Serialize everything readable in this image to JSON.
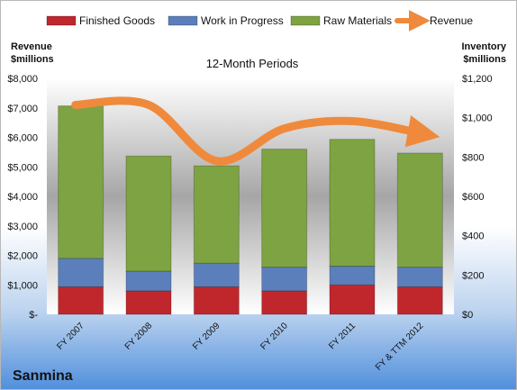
{
  "chart_data": {
    "type": "bar",
    "stacked": true,
    "subtitle": "12-Month Periods",
    "company": "Sanmina",
    "categories": [
      "FY 2007",
      "FY 2008",
      "FY 2009",
      "FY 2010",
      "FY 2011",
      "FY & TTM 2012"
    ],
    "series": [
      {
        "name": "Finished Goods",
        "axis": "right",
        "color": "#c0272d",
        "values": [
          140,
          120,
          140,
          120,
          150,
          140
        ]
      },
      {
        "name": "Work in Progress",
        "axis": "right",
        "color": "#5b7fba",
        "values": [
          145,
          100,
          120,
          120,
          95,
          100
        ]
      },
      {
        "name": "Raw Materials",
        "axis": "right",
        "color": "#7ea342",
        "values": [
          775,
          585,
          495,
          600,
          645,
          580
        ]
      },
      {
        "name": "Revenue",
        "type": "line",
        "axis": "left",
        "color": "#ef8a3c",
        "values": [
          7100,
          7100,
          5200,
          6300,
          6550,
          6100
        ]
      }
    ],
    "y_left": {
      "title": "Revenue\n$millions",
      "range": [
        0,
        8000
      ],
      "ticks": [
        0,
        1000,
        2000,
        3000,
        4000,
        5000,
        6000,
        7000,
        8000
      ],
      "tick_labels": [
        "$-",
        "$1,000",
        "$2,000",
        "$3,000",
        "$4,000",
        "$5,000",
        "$6,000",
        "$7,000",
        "$8,000"
      ]
    },
    "y_right": {
      "title": "Inventory\n$millions",
      "range": [
        0,
        1200
      ],
      "ticks": [
        0,
        200,
        400,
        600,
        800,
        1000,
        1200
      ],
      "tick_labels": [
        "$0",
        "$200",
        "$400",
        "$600",
        "$800",
        "$1,000",
        "$1,200"
      ]
    },
    "legend_position": "top",
    "grid": false
  }
}
